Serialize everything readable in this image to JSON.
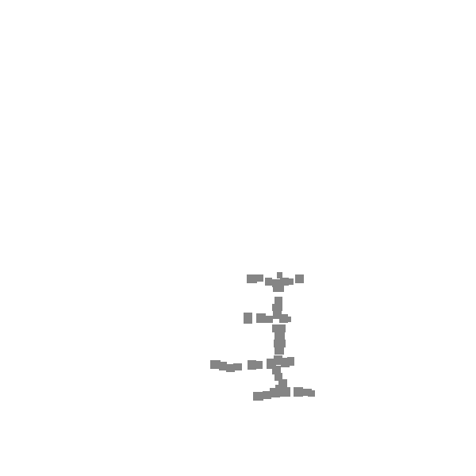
{
  "canvas": {
    "background": "#ffffff",
    "mark_color": "#858585"
  },
  "figure": {
    "description_icon": "scattered-gray-block-cluster-icon"
  }
}
